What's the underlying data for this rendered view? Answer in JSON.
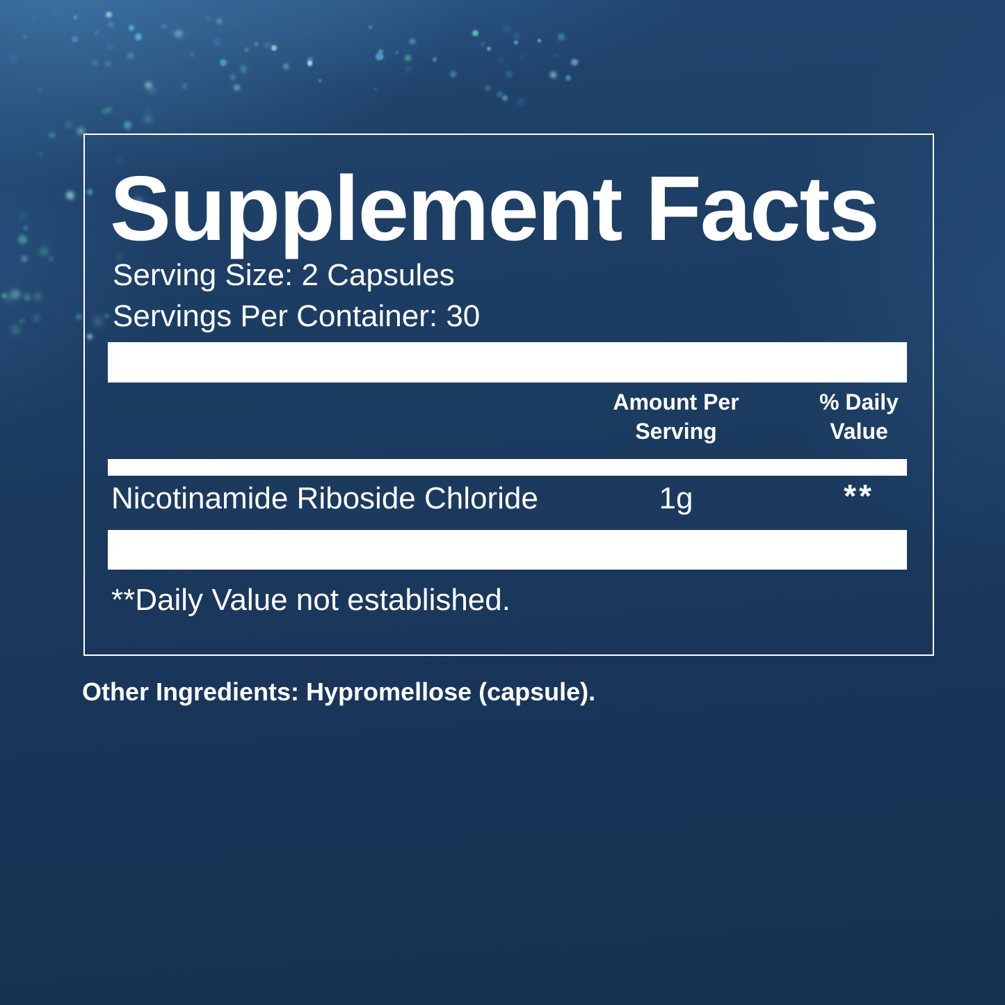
{
  "label": {
    "title": "Supplement Facts",
    "serving_size": "Serving Size: 2 Capsules",
    "servings_per_container": "Servings Per Container: 30",
    "columns": {
      "amount_per_serving": "Amount Per Serving",
      "percent_daily_value": "% Daily Value"
    },
    "rows": [
      {
        "name": "Nicotinamide Riboside Chloride",
        "amount": "1g",
        "daily_value": "**"
      }
    ],
    "footnote": "**Daily Value not established.",
    "other_ingredients": "Other Ingredients: Hypromellose (capsule)."
  },
  "colors": {
    "background_navy": "#1b3a5e",
    "box_border": "#ffffff",
    "separator_bar": "#ffffff",
    "text": "#ffffff",
    "particle_cyan": "#9fe8e0",
    "particle_green": "#5fd3a8",
    "particle_blue": "#58b7e8"
  }
}
